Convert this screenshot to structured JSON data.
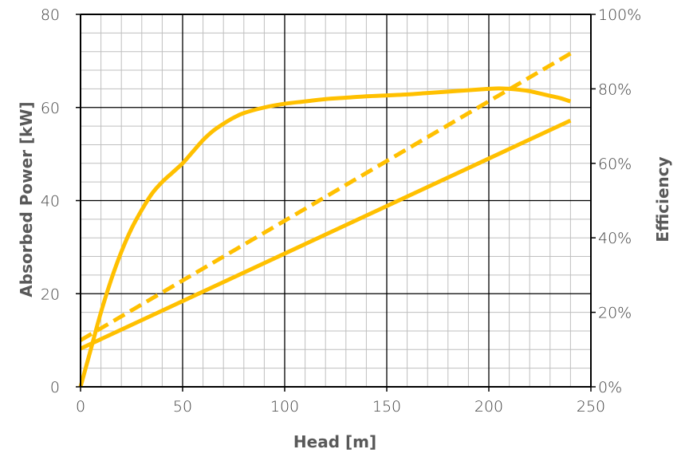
{
  "chart_data": {
    "type": "line",
    "xlabel": "Head [m]",
    "ylabel": "Absorbed Power [kW]",
    "y2label": "Efficiency",
    "xlim": [
      0,
      250
    ],
    "ylim": [
      0,
      80
    ],
    "y2lim": [
      0,
      100
    ],
    "x_ticks": [
      "0",
      "50",
      "100",
      "150",
      "200",
      "250"
    ],
    "y_ticks": [
      "0",
      "20",
      "40",
      "60",
      "80"
    ],
    "y2_ticks": [
      "0%",
      "20%",
      "40%",
      "60%",
      "80%",
      "100%"
    ],
    "grid": "major and minor",
    "series_color": "#FFC000",
    "series": [
      {
        "axis": "left",
        "style": "solid",
        "x": [
          0,
          5,
          10,
          15,
          20,
          25,
          30,
          35,
          40,
          45,
          50,
          55,
          60,
          65,
          70,
          75,
          80,
          90,
          100,
          110,
          120,
          130,
          140,
          150,
          160,
          170,
          180,
          190,
          200,
          205,
          210,
          215,
          220,
          225,
          230,
          235,
          240
        ],
        "y": [
          0,
          8,
          16,
          23,
          29,
          34,
          38,
          41.5,
          44,
          46,
          48,
          50.5,
          53,
          55,
          56.5,
          57.8,
          58.8,
          60,
          60.8,
          61.3,
          61.8,
          62.1,
          62.4,
          62.6,
          62.8,
          63.1,
          63.4,
          63.7,
          64,
          64.1,
          64,
          63.8,
          63.5,
          63,
          62.5,
          62,
          61.3
        ]
      },
      {
        "axis": "left",
        "style": "solid",
        "x": [
          0,
          240
        ],
        "y": [
          8.2,
          57.2
        ]
      },
      {
        "axis": "right",
        "style": "dashed",
        "x": [
          0,
          240
        ],
        "y": [
          12.5,
          89.5
        ]
      }
    ]
  }
}
